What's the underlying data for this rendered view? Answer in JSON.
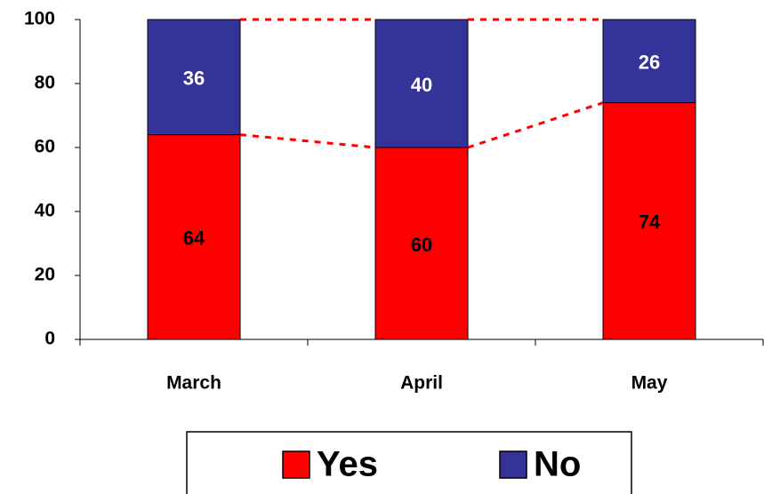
{
  "chart_data": {
    "type": "stacked_bar",
    "categories": [
      "March",
      "April",
      "May"
    ],
    "series": [
      {
        "name": "Yes",
        "color": "#ff0000",
        "values": [
          64,
          60,
          74
        ]
      },
      {
        "name": "No",
        "color": "#333399",
        "values": [
          36,
          40,
          26
        ]
      }
    ],
    "series_line_color": "#ff0000",
    "label_colors": [
      "#000000",
      "#ffffff"
    ],
    "ylim": [
      0,
      100
    ],
    "yticks": [
      0,
      20,
      40,
      60,
      80,
      100
    ],
    "grid": false,
    "legend": "bottom"
  }
}
